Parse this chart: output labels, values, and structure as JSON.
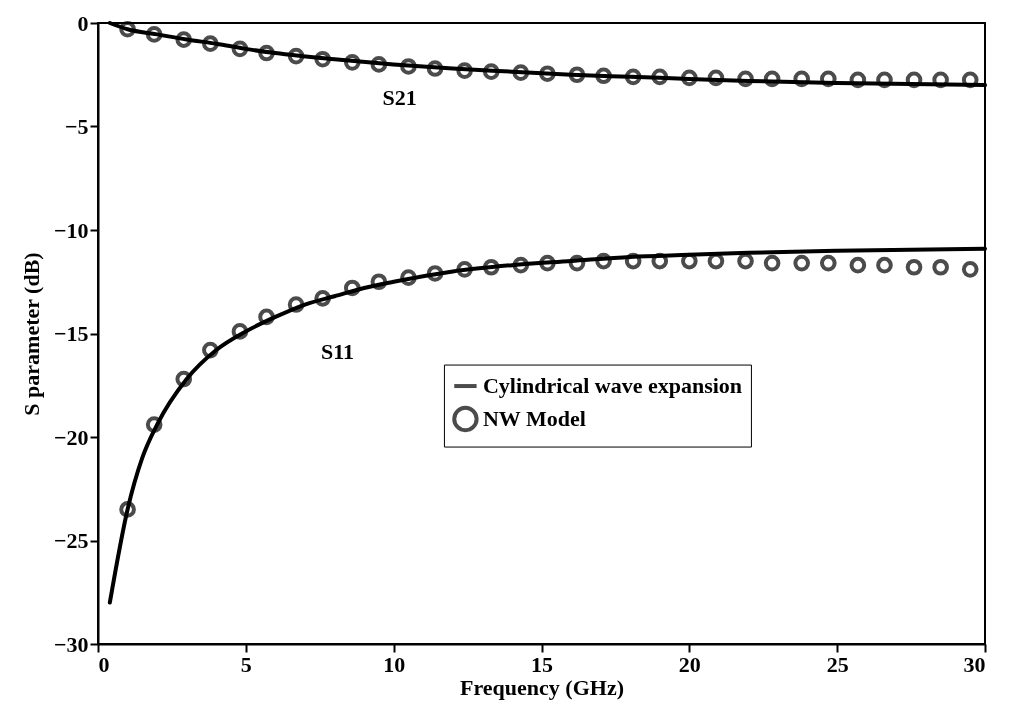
{
  "chart_data": {
    "type": "line",
    "xlabel": "Frequency (GHz)",
    "ylabel": "S parameter (dB)",
    "xlim": [
      0,
      30
    ],
    "xticks": [
      0,
      5,
      10,
      15,
      20,
      25,
      30
    ],
    "ylim": [
      -30,
      0
    ],
    "yticks": [
      -30,
      -25,
      -20,
      -15,
      -10,
      -5,
      0
    ],
    "grid": false,
    "legend": "right",
    "annotations": [
      "S21",
      "S11"
    ],
    "series": [
      {
        "name": "Cylindrical wave expansion",
        "color": "#000000",
        "line_style": "solid",
        "x": [
          0.4,
          1,
          1.5,
          2,
          3,
          4,
          5,
          6,
          7,
          8,
          9,
          10,
          12,
          14,
          16,
          18,
          20,
          22,
          25,
          30
        ],
        "values": [
          -28,
          -23.5,
          -21,
          -19.4,
          -17.2,
          -15.8,
          -14.9,
          -14.2,
          -13.6,
          -13.2,
          -12.8,
          -12.5,
          -12.0,
          -11.7,
          -11.5,
          -11.3,
          -11.2,
          -11.1,
          -11.0,
          -10.9
        ]
      },
      {
        "color": "#000000",
        "line_style": "solid",
        "x": [
          0.4,
          1,
          2,
          3,
          4,
          5,
          6,
          8,
          10,
          12,
          14,
          16,
          18,
          20,
          22,
          25,
          30
        ],
        "values": [
          0,
          -0.3,
          -0.55,
          -0.8,
          -1.0,
          -1.25,
          -1.45,
          -1.75,
          -2.0,
          -2.2,
          -2.35,
          -2.5,
          -2.6,
          -2.7,
          -2.8,
          -2.9,
          -3.0
        ]
      },
      {
        "name": "NW Model",
        "type": "scatter",
        "marker": "circle",
        "color": "#000000",
        "x": [
          1,
          1.9,
          2.9,
          3.8,
          4.8,
          5.7,
          6.7,
          7.6,
          8.6,
          9.5,
          10.5,
          11.4,
          12.4,
          13.3,
          14.3,
          15.2,
          16.2,
          17.1,
          18.1,
          19,
          20,
          20.9,
          21.9,
          22.8,
          23.8,
          24.7,
          25.7,
          26.6,
          27.6,
          28.5,
          29.5
        ],
        "values": [
          -23.5,
          -19.4,
          -17.2,
          -15.8,
          -14.9,
          -14.2,
          -13.6,
          -13.3,
          -12.8,
          -12.5,
          -12.3,
          -12.1,
          -11.9,
          -11.8,
          -11.7,
          -11.6,
          -11.6,
          -11.5,
          -11.5,
          -11.5,
          -11.5,
          -11.5,
          -11.5,
          -11.6,
          -11.6,
          -11.6,
          -11.7,
          -11.7,
          -11.8,
          -11.8,
          -11.9
        ]
      },
      {
        "type": "scatter",
        "marker": "circle",
        "color": "#000000",
        "x": [
          1,
          1.9,
          2.9,
          3.8,
          4.8,
          5.7,
          6.7,
          7.6,
          8.6,
          9.5,
          10.5,
          11.4,
          12.4,
          13.3,
          14.3,
          15.2,
          16.2,
          17.1,
          18.1,
          19,
          20,
          20.9,
          21.9,
          22.8,
          23.8,
          24.7,
          25.7,
          26.6,
          27.6,
          28.5,
          29.5
        ],
        "values": [
          -0.3,
          -0.55,
          -0.8,
          -1.0,
          -1.25,
          -1.45,
          -1.6,
          -1.75,
          -1.9,
          -2.0,
          -2.1,
          -2.2,
          -2.3,
          -2.35,
          -2.4,
          -2.45,
          -2.5,
          -2.55,
          -2.6,
          -2.6,
          -2.65,
          -2.65,
          -2.7,
          -2.7,
          -2.7,
          -2.7,
          -2.75,
          -2.75,
          -2.75,
          -2.75,
          -2.75
        ]
      }
    ]
  }
}
